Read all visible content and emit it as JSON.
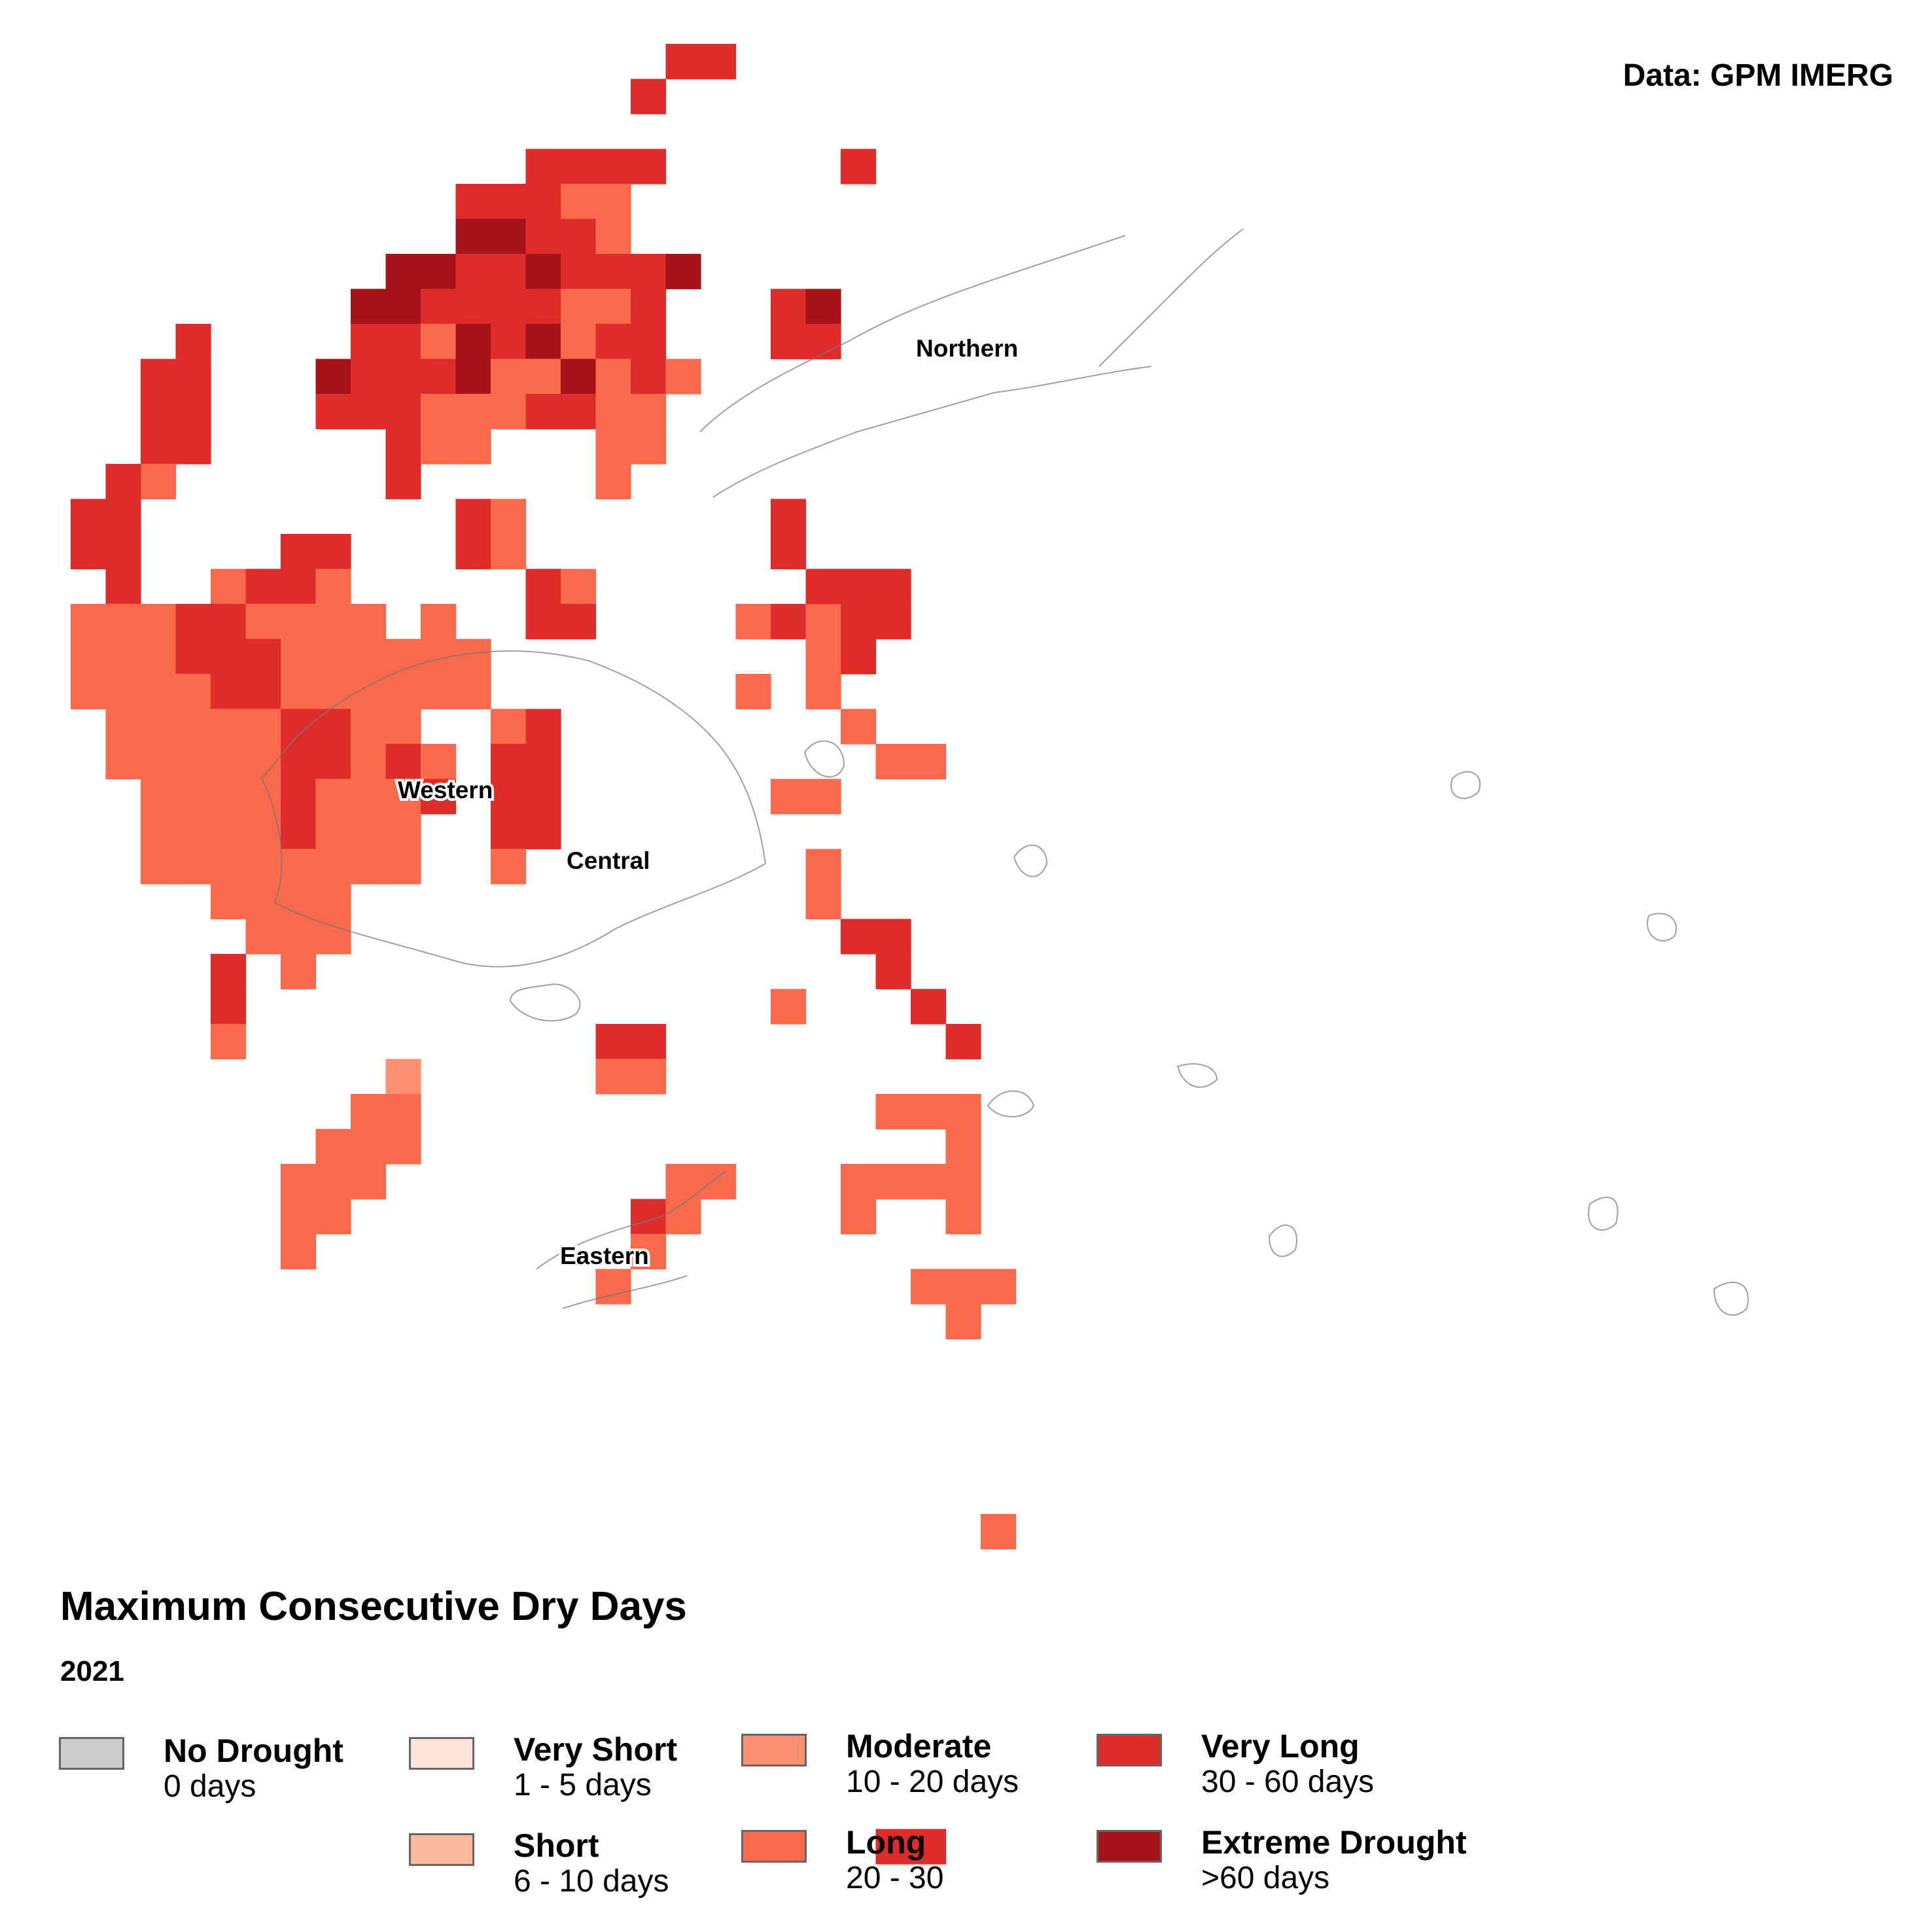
{
  "source": "Data: GPM IMERG",
  "title": "Maximum Consecutive Dry Days",
  "year": "2021",
  "colors": {
    "none": "#cccccc",
    "very_short": "#fde3d9",
    "short": "#fcbba1",
    "moderate": "#fc9272",
    "long": "#f86a4b",
    "very_long": "#dd2c2a",
    "extreme": "#a61419"
  },
  "legend": [
    {
      "key": "none",
      "label": "No Drought",
      "range": "0 days"
    },
    {
      "key": "very_short",
      "label": "Very Short",
      "range": "1 - 5 days"
    },
    {
      "key": "short",
      "label": "Short",
      "range": "6 - 10 days"
    },
    {
      "key": "moderate",
      "label": "Moderate",
      "range": "10 - 20 days"
    },
    {
      "key": "long",
      "label": "Long",
      "range": "20 - 30"
    },
    {
      "key": "very_long",
      "label": "Very Long",
      "range": "30 - 60 days"
    },
    {
      "key": "extreme",
      "label": "Extreme Drought",
      "range": ">60 days"
    }
  ],
  "regions": {
    "northern": "Northern",
    "western": "Western",
    "central": "Central",
    "eastern": "Eastern"
  }
}
